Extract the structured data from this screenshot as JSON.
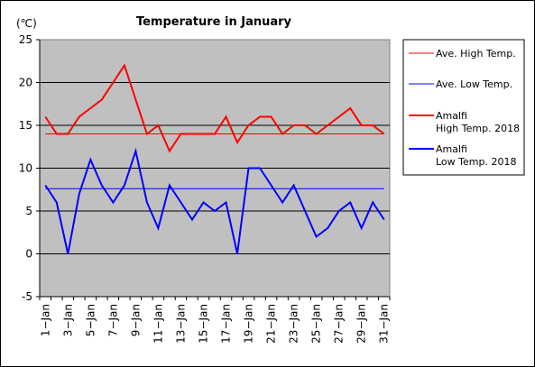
{
  "chart_data": {
    "type": "line",
    "title": "Temperature in January",
    "ylabel": "(℃)",
    "ylim": [
      -5,
      25
    ],
    "yticks": [
      25,
      20,
      15,
      10,
      5,
      0,
      -5
    ],
    "grid": true,
    "legend_position": "right",
    "x": [
      "1-Jan",
      "2-Jan",
      "3-Jan",
      "4-Jan",
      "5-Jan",
      "6-Jan",
      "7-Jan",
      "8-Jan",
      "9-Jan",
      "10-Jan",
      "11-Jan",
      "12-Jan",
      "13-Jan",
      "14-Jan",
      "15-Jan",
      "16-Jan",
      "17-Jan",
      "18-Jan",
      "19-Jan",
      "20-Jan",
      "21-Jan",
      "22-Jan",
      "23-Jan",
      "24-Jan",
      "25-Jan",
      "26-Jan",
      "27-Jan",
      "28-Jan",
      "29-Jan",
      "30-Jan",
      "31-Jan"
    ],
    "xtick_labels": [
      "1−Jan",
      "3−Jan",
      "5−Jan",
      "7−Jan",
      "9−Jan",
      "11−Jan",
      "13−Jan",
      "15−Jan",
      "17−Jan",
      "19−Jan",
      "21−Jan",
      "23−Jan",
      "25−Jan",
      "27−Jan",
      "29−Jan",
      "31−Jan"
    ],
    "series": [
      {
        "name": "Ave. High Temp.",
        "color": "#ff0000",
        "style": "thin",
        "values": [
          14,
          14,
          14,
          14,
          14,
          14,
          14,
          14,
          14,
          14,
          14,
          14,
          14,
          14,
          14,
          14,
          14,
          14,
          14,
          14,
          14,
          14,
          14,
          14,
          14,
          14,
          14,
          14,
          14,
          14,
          14
        ]
      },
      {
        "name": "Ave. Low Temp.",
        "color": "#0000ff",
        "style": "thin",
        "values": [
          7.6,
          7.6,
          7.6,
          7.6,
          7.6,
          7.6,
          7.6,
          7.6,
          7.6,
          7.6,
          7.6,
          7.6,
          7.6,
          7.6,
          7.6,
          7.6,
          7.6,
          7.6,
          7.6,
          7.6,
          7.6,
          7.6,
          7.6,
          7.6,
          7.6,
          7.6,
          7.6,
          7.6,
          7.6,
          7.6,
          7.6
        ]
      },
      {
        "name": "Amalfi High Temp. 2018",
        "name_lines": [
          "Amalfi",
          "High Temp. 2018"
        ],
        "color": "#ff0000",
        "style": "thick",
        "values": [
          16,
          14,
          14,
          16,
          17,
          18,
          20,
          22,
          18,
          14,
          15,
          12,
          14,
          14,
          14,
          14,
          16,
          13,
          15,
          16,
          16,
          14,
          15,
          15,
          14,
          15,
          16,
          17,
          15,
          15,
          14
        ]
      },
      {
        "name": "Amalfi Low Temp. 2018",
        "name_lines": [
          "Amalfi",
          "Low Temp. 2018"
        ],
        "color": "#0000ff",
        "style": "thick",
        "values": [
          8,
          6,
          0,
          7,
          11,
          8,
          6,
          8,
          12,
          6,
          3,
          8,
          6,
          4,
          6,
          5,
          6,
          0,
          10,
          10,
          8,
          6,
          8,
          5,
          2,
          3,
          5,
          6,
          3,
          6,
          4
        ]
      }
    ]
  }
}
